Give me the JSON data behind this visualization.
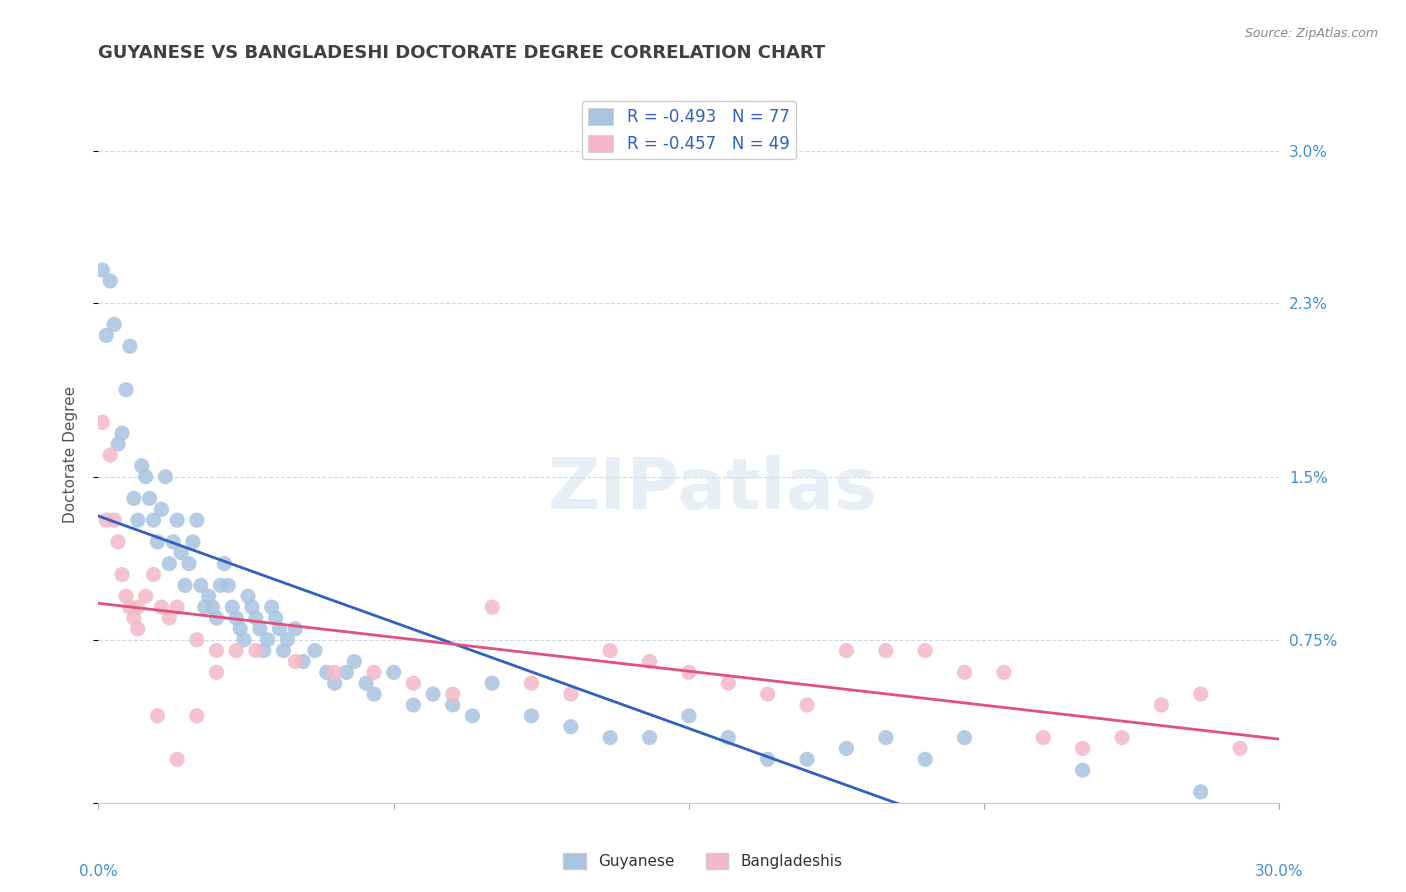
{
  "title": "GUYANESE VS BANGLADESHI DOCTORATE DEGREE CORRELATION CHART",
  "source": "Source: ZipAtlas.com",
  "ylabel": "Doctorate Degree",
  "right_yticks": [
    "3.0%",
    "2.3%",
    "1.5%",
    "0.75%",
    ""
  ],
  "right_ytick_vals": [
    0.03,
    0.023,
    0.015,
    0.0075,
    0.0
  ],
  "xlim": [
    0.0,
    0.3
  ],
  "ylim": [
    0.0,
    0.032
  ],
  "watermark": "ZIPatlas",
  "legend_entries": [
    {
      "color": "#a8c4e0",
      "label": "R = -0.493   N = 77"
    },
    {
      "color": "#f4b8c8",
      "label": "R = -0.457   N = 49"
    }
  ],
  "bottom_legend": [
    {
      "color": "#a8c4e0",
      "label": "Guyanese"
    },
    {
      "color": "#f4b8c8",
      "label": "Bangladeshis"
    }
  ],
  "guyanese_x": [
    0.001,
    0.002,
    0.003,
    0.004,
    0.005,
    0.006,
    0.007,
    0.008,
    0.009,
    0.01,
    0.011,
    0.012,
    0.013,
    0.014,
    0.015,
    0.016,
    0.017,
    0.018,
    0.019,
    0.02,
    0.021,
    0.022,
    0.023,
    0.024,
    0.025,
    0.026,
    0.027,
    0.028,
    0.029,
    0.03,
    0.031,
    0.032,
    0.033,
    0.034,
    0.035,
    0.036,
    0.037,
    0.038,
    0.039,
    0.04,
    0.041,
    0.042,
    0.043,
    0.044,
    0.045,
    0.046,
    0.047,
    0.048,
    0.05,
    0.052,
    0.055,
    0.058,
    0.06,
    0.063,
    0.065,
    0.068,
    0.07,
    0.075,
    0.08,
    0.085,
    0.09,
    0.095,
    0.1,
    0.11,
    0.12,
    0.13,
    0.14,
    0.15,
    0.16,
    0.17,
    0.18,
    0.19,
    0.2,
    0.21,
    0.22,
    0.25,
    0.28
  ],
  "guyanese_y": [
    0.0245,
    0.0215,
    0.024,
    0.022,
    0.0165,
    0.017,
    0.019,
    0.021,
    0.014,
    0.013,
    0.0155,
    0.015,
    0.014,
    0.013,
    0.012,
    0.0135,
    0.015,
    0.011,
    0.012,
    0.013,
    0.0115,
    0.01,
    0.011,
    0.012,
    0.013,
    0.01,
    0.009,
    0.0095,
    0.009,
    0.0085,
    0.01,
    0.011,
    0.01,
    0.009,
    0.0085,
    0.008,
    0.0075,
    0.0095,
    0.009,
    0.0085,
    0.008,
    0.007,
    0.0075,
    0.009,
    0.0085,
    0.008,
    0.007,
    0.0075,
    0.008,
    0.0065,
    0.007,
    0.006,
    0.0055,
    0.006,
    0.0065,
    0.0055,
    0.005,
    0.006,
    0.0045,
    0.005,
    0.0045,
    0.004,
    0.0055,
    0.004,
    0.0035,
    0.003,
    0.003,
    0.004,
    0.003,
    0.002,
    0.002,
    0.0025,
    0.003,
    0.002,
    0.003,
    0.0015,
    0.0005
  ],
  "bangladeshi_x": [
    0.001,
    0.002,
    0.003,
    0.004,
    0.005,
    0.006,
    0.007,
    0.008,
    0.009,
    0.01,
    0.012,
    0.014,
    0.016,
    0.018,
    0.02,
    0.025,
    0.03,
    0.035,
    0.04,
    0.05,
    0.06,
    0.07,
    0.08,
    0.09,
    0.1,
    0.11,
    0.12,
    0.13,
    0.14,
    0.15,
    0.16,
    0.17,
    0.18,
    0.19,
    0.2,
    0.21,
    0.22,
    0.23,
    0.24,
    0.25,
    0.26,
    0.27,
    0.28,
    0.29,
    0.01,
    0.015,
    0.02,
    0.025,
    0.03
  ],
  "bangladeshi_y": [
    0.0175,
    0.013,
    0.016,
    0.013,
    0.012,
    0.0105,
    0.0095,
    0.009,
    0.0085,
    0.008,
    0.0095,
    0.0105,
    0.009,
    0.0085,
    0.009,
    0.0075,
    0.007,
    0.007,
    0.007,
    0.0065,
    0.006,
    0.006,
    0.0055,
    0.005,
    0.009,
    0.0055,
    0.005,
    0.007,
    0.0065,
    0.006,
    0.0055,
    0.005,
    0.0045,
    0.007,
    0.007,
    0.007,
    0.006,
    0.006,
    0.003,
    0.0025,
    0.003,
    0.0045,
    0.005,
    0.0025,
    0.009,
    0.004,
    0.002,
    0.004,
    0.006
  ],
  "blue_line_color": "#3060c0",
  "pink_line_color": "#e05080",
  "blue_scatter_color": "#a8c4e0",
  "pink_scatter_color": "#f4b8c8",
  "grid_color": "#d0d8e8",
  "title_color": "#404040",
  "right_axis_color": "#4090d0",
  "background_color": "#ffffff"
}
